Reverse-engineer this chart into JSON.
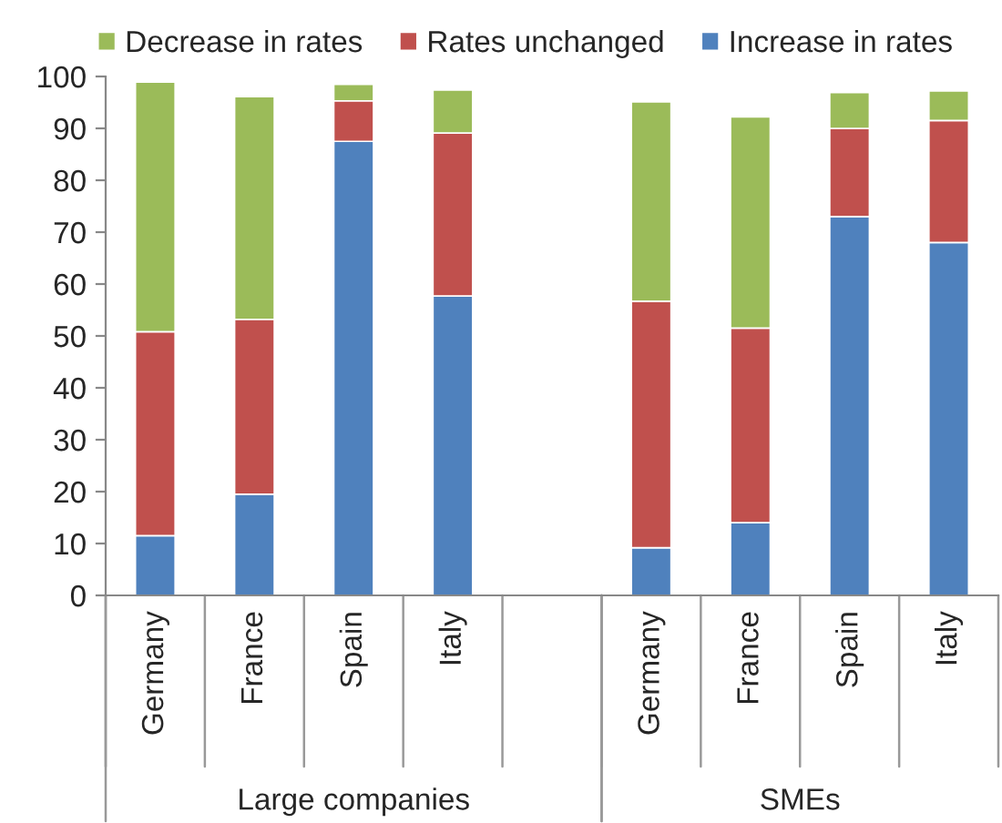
{
  "chart_data": {
    "type": "bar",
    "stacked": true,
    "categories": [
      "Germany",
      "France",
      "Spain",
      "Italy",
      null,
      "Germany",
      "France",
      "Spain",
      "Italy"
    ],
    "series": [
      {
        "name": "Increase in rates",
        "color": "#4f81bd",
        "values": [
          11.5,
          19.5,
          87.5,
          57.7,
          null,
          9.2,
          14.0,
          73.0,
          68.0
        ]
      },
      {
        "name": "Rates unchanged",
        "color": "#c0504d",
        "values": [
          39.3,
          33.7,
          7.8,
          31.4,
          null,
          47.5,
          37.5,
          17.0,
          23.5
        ]
      },
      {
        "name": "Decrease in rates",
        "color": "#9bbb59",
        "values": [
          48.1,
          42.9,
          3.2,
          8.3,
          null,
          38.4,
          40.7,
          6.9,
          5.7
        ]
      }
    ],
    "ylim": [
      0,
      100
    ],
    "yticks": [
      0,
      10,
      20,
      30,
      40,
      50,
      60,
      70,
      80,
      90,
      100
    ],
    "annotations": [
      "Large companies",
      "SMEs"
    ],
    "legend": "top",
    "grid": false
  }
}
